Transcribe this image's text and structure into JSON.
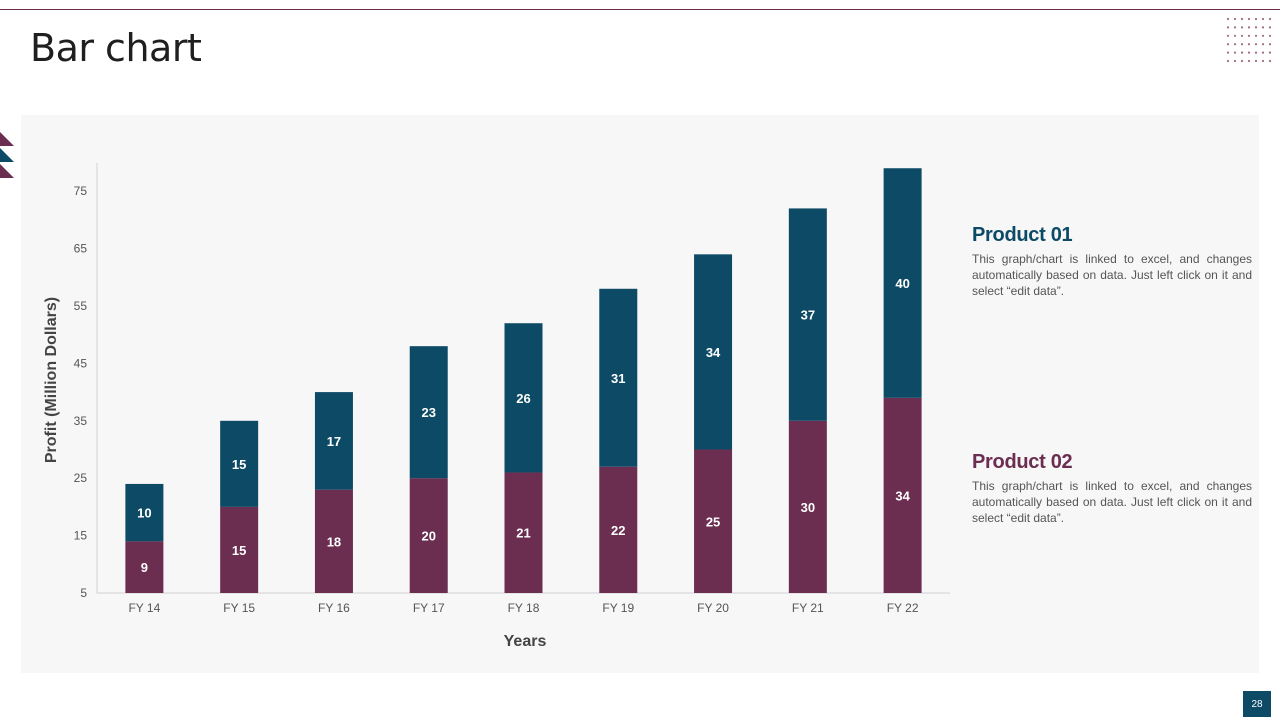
{
  "slide": {
    "title": "Bar chart",
    "page_number": "28"
  },
  "colors": {
    "product01": "#0d4a66",
    "product02": "#6b2d50",
    "accent_rule": "#6b2d50"
  },
  "legend": [
    {
      "title": "Product 01",
      "description": "This graph/chart is linked to excel, and changes automatically based on data. Just left click on it and select “edit data”."
    },
    {
      "title": "Product 02",
      "description": "This graph/chart is linked to excel, and changes automatically based on data. Just left click on it and select “edit data”."
    }
  ],
  "chart_data": {
    "type": "bar",
    "stacked": true,
    "categories": [
      "FY 14",
      "FY 15",
      "FY 16",
      "FY 17",
      "FY 18",
      "FY 19",
      "FY 20",
      "FY 21",
      "FY 22"
    ],
    "series": [
      {
        "name": "Product 02",
        "values": [
          9,
          15,
          18,
          20,
          21,
          22,
          25,
          30,
          34
        ]
      },
      {
        "name": "Product 01",
        "values": [
          10,
          15,
          17,
          23,
          26,
          31,
          34,
          37,
          40
        ]
      }
    ],
    "xlabel": "Years",
    "ylabel": "Profit  (Million Dollars)",
    "ylim": [
      5,
      80
    ],
    "yticks": [
      5,
      15,
      25,
      35,
      45,
      55,
      65,
      75
    ],
    "grid": false
  }
}
